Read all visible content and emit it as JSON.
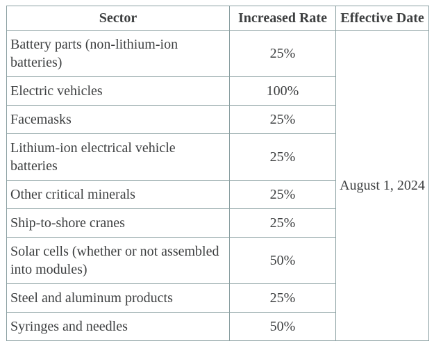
{
  "colors": {
    "border": "#8a9fa1",
    "text": "#3d3f40",
    "background": "#ffffff"
  },
  "table": {
    "headers": [
      {
        "label": "Sector"
      },
      {
        "label": "Increased Rate"
      },
      {
        "label": "Effective Date"
      }
    ],
    "rows": [
      {
        "sector": "Battery parts (non-lithium-ion batteries)",
        "rate": "25%"
      },
      {
        "sector": "Electric vehicles",
        "rate": "100%"
      },
      {
        "sector": "Facemasks",
        "rate": "25%"
      },
      {
        "sector": "Lithium-ion electrical vehicle batteries",
        "rate": "25%"
      },
      {
        "sector": "Other critical minerals",
        "rate": "25%"
      },
      {
        "sector": "Ship-to-shore cranes",
        "rate": "25%"
      },
      {
        "sector": "Solar cells (whether or not assembled into modules)",
        "rate": "50%"
      },
      {
        "sector": "Steel and aluminum products",
        "rate": "25%"
      },
      {
        "sector": "Syringes and needles",
        "rate": "50%"
      }
    ],
    "effective_date": "August 1, 2024"
  }
}
